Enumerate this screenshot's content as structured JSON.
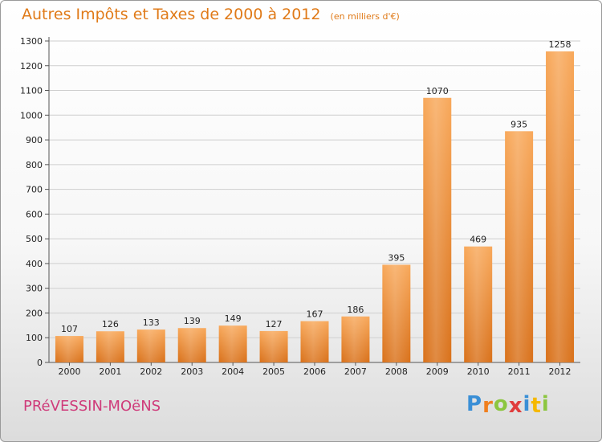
{
  "header": {
    "title": "Autres Impôts et Taxes de 2000 à 2012",
    "subtitle": "(en milliers d'€)"
  },
  "footer": {
    "commune": "PRéVESSIN-MOëNS",
    "logo_letters": [
      {
        "ch": "P",
        "color": "#3a8fd6"
      },
      {
        "ch": "r",
        "color": "#f07f1e"
      },
      {
        "ch": "o",
        "color": "#8cc63f"
      },
      {
        "ch": "x",
        "color": "#e03c3c"
      },
      {
        "ch": "i",
        "color": "#3a8fd6"
      },
      {
        "ch": "t",
        "color": "#f5b800"
      },
      {
        "ch": "i",
        "color": "#8cc63f"
      }
    ]
  },
  "colors": {
    "bar_light": "#f7a552",
    "bar_dark": "#e07a18",
    "title": "#e07a18",
    "commune": "#cf3b7a"
  },
  "chart_data": {
    "type": "bar",
    "categories": [
      "2000",
      "2001",
      "2002",
      "2003",
      "2004",
      "2005",
      "2006",
      "2007",
      "2008",
      "2009",
      "2010",
      "2011",
      "2012"
    ],
    "values": [
      107,
      126,
      133,
      139,
      149,
      127,
      167,
      186,
      395,
      1070,
      469,
      935,
      1258
    ],
    "ylim": [
      0,
      1300
    ],
    "yticks": [
      0,
      100,
      200,
      300,
      400,
      500,
      600,
      700,
      800,
      900,
      1000,
      1100,
      1200,
      1300
    ],
    "grid": true,
    "legend": "none"
  }
}
